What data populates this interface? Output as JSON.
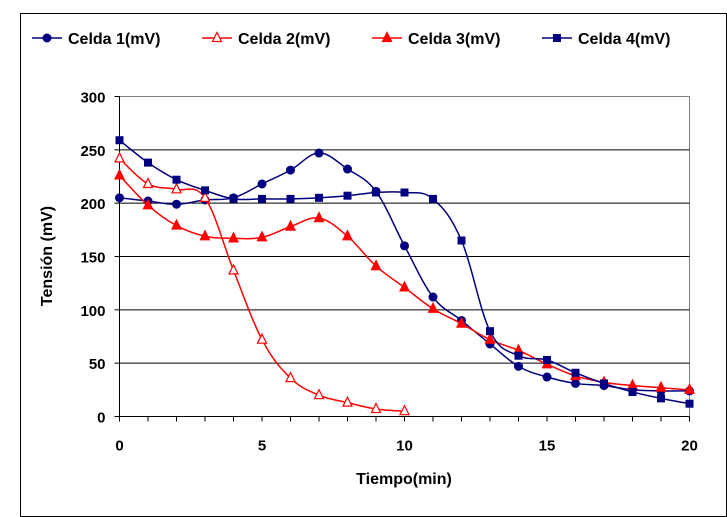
{
  "chart_data": {
    "type": "line",
    "title": "",
    "xlabel": "Tiempo(min)",
    "ylabel": "Tensión (mV)",
    "xlim": [
      0,
      20
    ],
    "ylim": [
      0,
      300
    ],
    "xticks": [
      "0",
      "5",
      "10",
      "15",
      "20"
    ],
    "yticks": [
      "0",
      "50",
      "100",
      "150",
      "200",
      "250",
      "300"
    ],
    "grid": "horizontal",
    "legend_position": "top",
    "series": [
      {
        "name": "Celda 1(mV)",
        "color": "#000080",
        "marker": "circle",
        "x": [
          0,
          1,
          2,
          3,
          4,
          5,
          6,
          7,
          8,
          9,
          10,
          11,
          12,
          13,
          14,
          15,
          16,
          17,
          18,
          19,
          20
        ],
        "values": [
          205,
          202,
          199,
          203,
          205,
          218,
          231,
          247,
          232,
          211,
          160,
          112,
          90,
          68,
          47,
          37,
          31,
          29,
          25,
          24,
          24
        ]
      },
      {
        "name": "Celda 2(mV)",
        "color": "#ff0000",
        "marker": "triangle-open",
        "x": [
          0,
          1,
          2,
          3,
          4,
          5,
          6,
          7,
          8,
          9,
          10
        ],
        "values": [
          242,
          218,
          213,
          205,
          137,
          72,
          36,
          20,
          13,
          7,
          5
        ]
      },
      {
        "name": "Celda 3(mV)",
        "color": "#ff0000",
        "marker": "triangle",
        "x": [
          0,
          1,
          2,
          3,
          4,
          5,
          6,
          7,
          8,
          9,
          10,
          11,
          12,
          13,
          14,
          15,
          16,
          17,
          18,
          19,
          20
        ],
        "values": [
          226,
          198,
          179,
          169,
          167,
          168,
          178,
          186,
          169,
          141,
          121,
          101,
          87,
          72,
          62,
          49,
          38,
          32,
          29,
          27,
          25
        ]
      },
      {
        "name": "Celda 4(mV)",
        "color": "#000080",
        "marker": "square",
        "x": [
          0,
          1,
          2,
          3,
          4,
          5,
          6,
          7,
          8,
          9,
          10,
          11,
          12,
          13,
          14,
          15,
          16,
          17,
          18,
          19,
          20
        ],
        "values": [
          259,
          238,
          222,
          212,
          204,
          204,
          204,
          205,
          207,
          210,
          210,
          204,
          165,
          80,
          57,
          53,
          41,
          31,
          23,
          17,
          12
        ]
      }
    ]
  }
}
